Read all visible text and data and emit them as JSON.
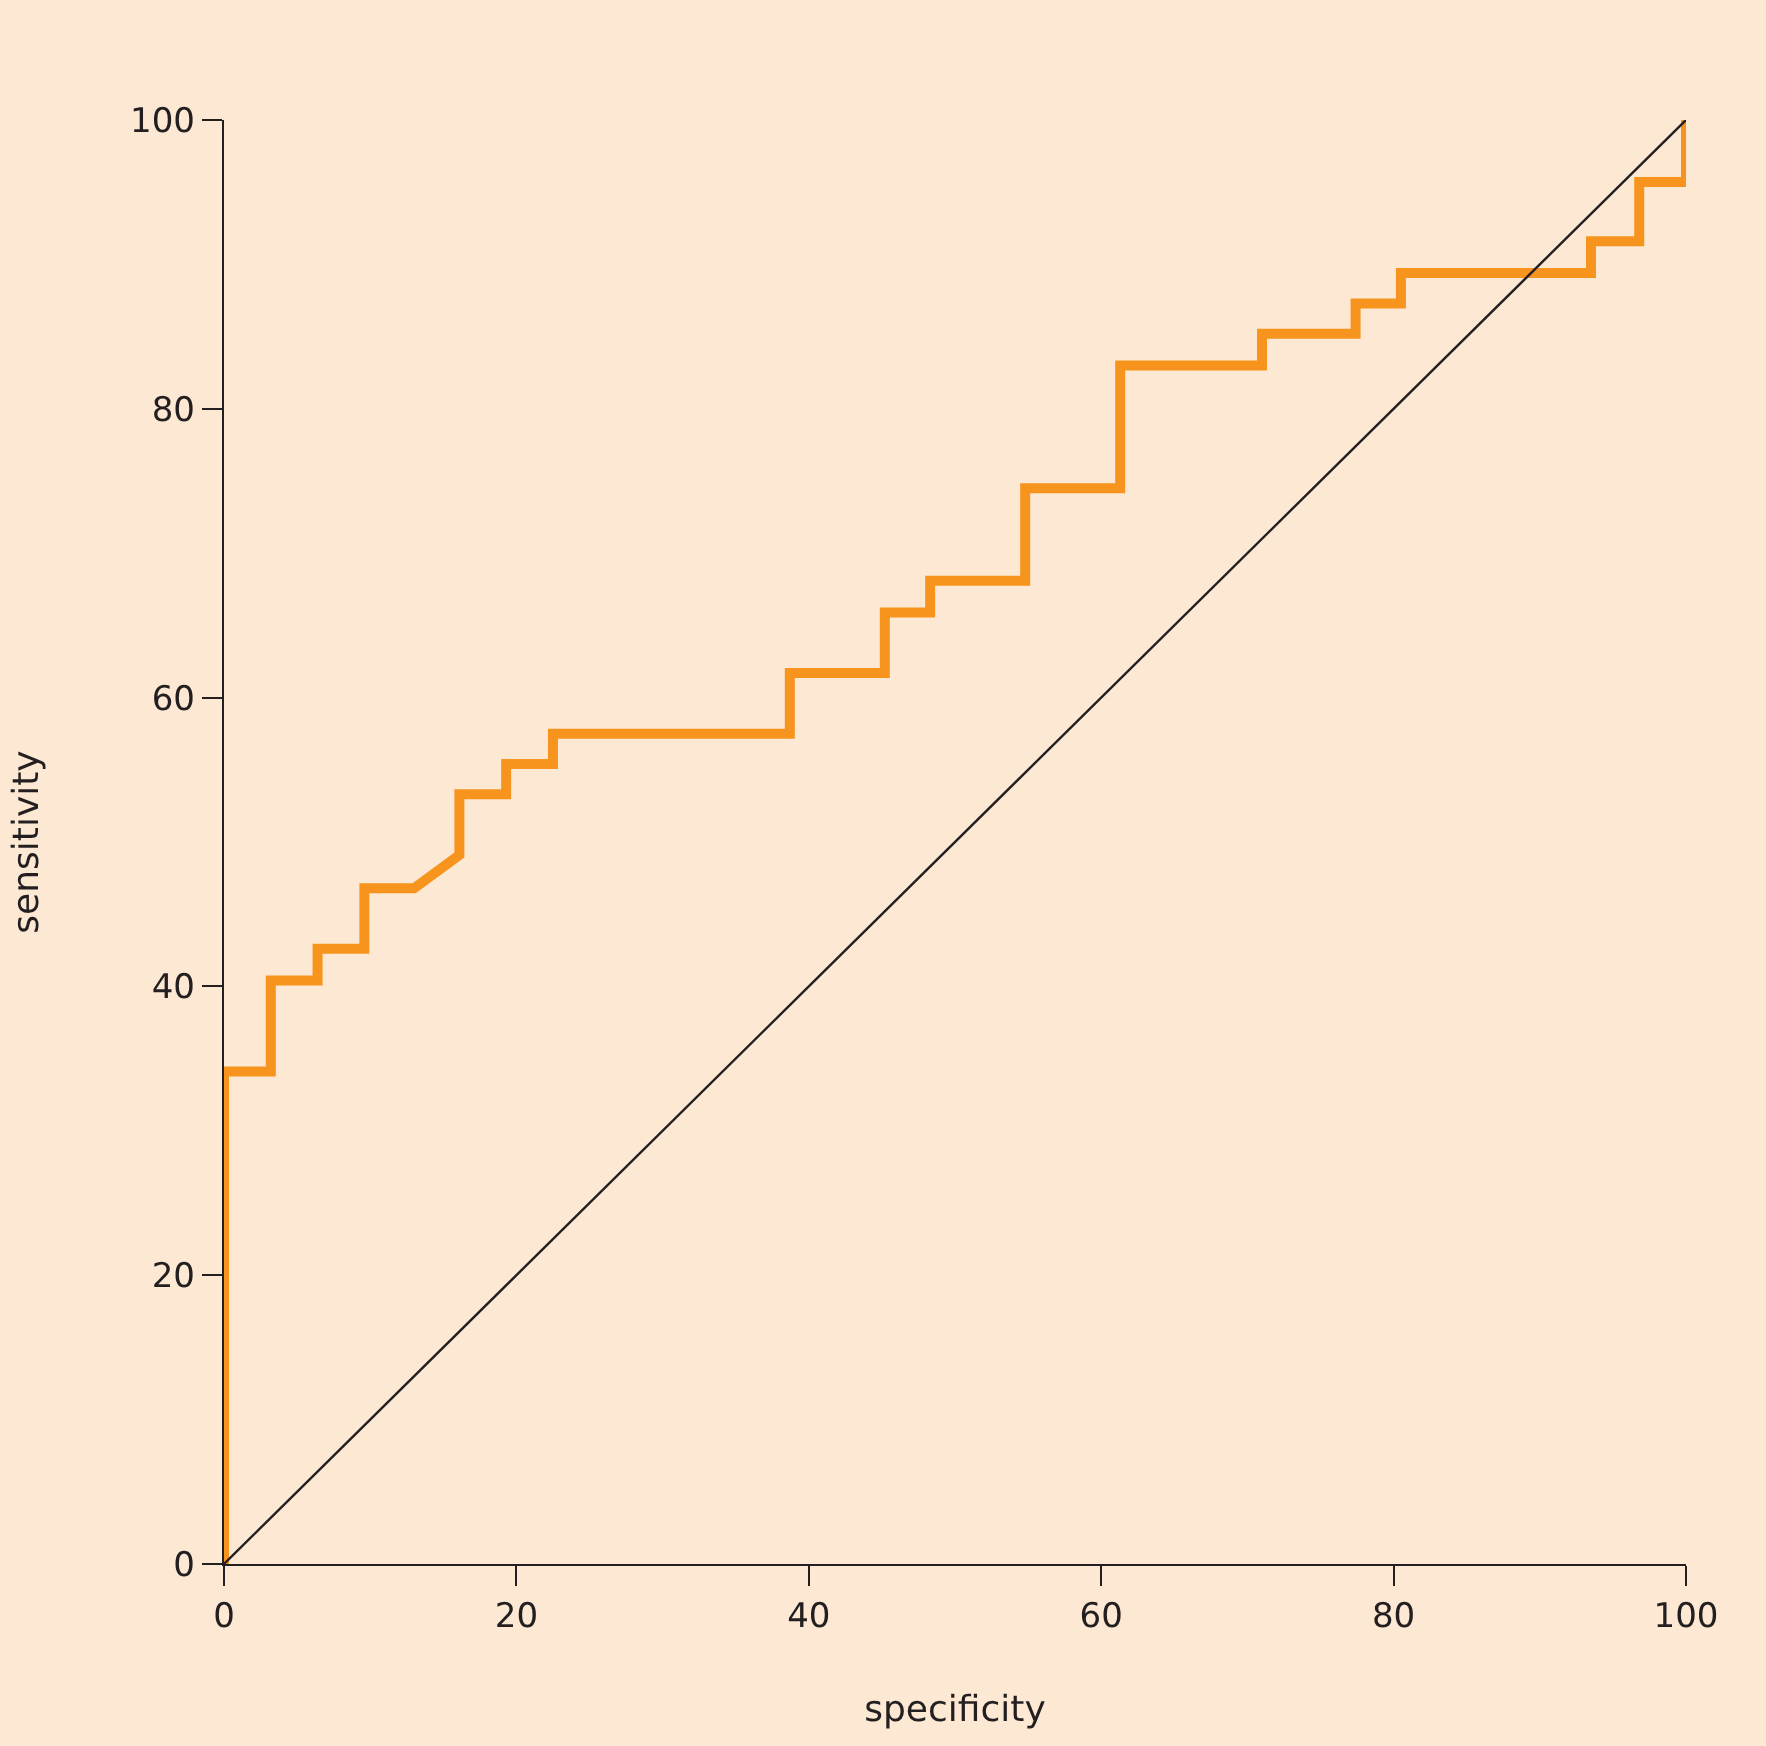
{
  "chart_data": {
    "type": "line",
    "xlabel": "specificity",
    "ylabel": "sensitivity",
    "xlim": [
      0,
      100
    ],
    "ylim": [
      0,
      100
    ],
    "xticks": [
      0,
      20,
      40,
      60,
      80,
      100
    ],
    "yticks": [
      0,
      20,
      40,
      60,
      80,
      100
    ],
    "grid": false,
    "marker": "none",
    "series": [
      {
        "color": "#f7941d",
        "line_style": "solid",
        "x": [
          0,
          0,
          3.2,
          3.2,
          6.4,
          6.4,
          9.6,
          9.6,
          13.0,
          16.1,
          16.1,
          19.3,
          19.3,
          22.5,
          22.5,
          38.7,
          38.7,
          45.2,
          45.2,
          48.3,
          48.3,
          54.8,
          54.8,
          61.3,
          61.3,
          71.0,
          71.0,
          77.4,
          77.4,
          80.5,
          80.5,
          93.5,
          93.5,
          96.8,
          96.8,
          100,
          100
        ],
        "values": [
          0,
          34.1,
          34.1,
          40.4,
          40.4,
          42.6,
          42.6,
          46.8,
          46.8,
          49.1,
          53.3,
          53.3,
          55.4,
          55.4,
          57.5,
          57.5,
          61.7,
          61.7,
          65.9,
          65.9,
          68.1,
          68.1,
          74.5,
          74.5,
          83.0,
          83.0,
          85.2,
          85.2,
          87.3,
          87.3,
          89.4,
          89.4,
          91.6,
          91.6,
          95.7,
          95.7,
          100
        ]
      },
      {
        "color": "#231f20",
        "line_style": "solid",
        "x": [
          0,
          100
        ],
        "values": [
          0,
          100
        ]
      }
    ]
  }
}
